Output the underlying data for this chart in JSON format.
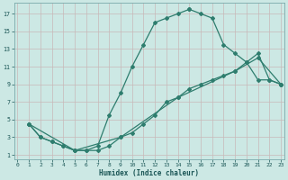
{
  "xlabel": "Humidex (Indice chaleur)",
  "bg_color": "#cce8e4",
  "line_color": "#2e7d6e",
  "grid_color": "#c8b8b8",
  "xlim": [
    -0.3,
    23.3
  ],
  "ylim": [
    0.5,
    18.2
  ],
  "xticks": [
    0,
    1,
    2,
    3,
    4,
    5,
    6,
    7,
    8,
    9,
    10,
    11,
    12,
    13,
    14,
    15,
    16,
    17,
    18,
    19,
    20,
    21,
    22,
    23
  ],
  "yticks": [
    1,
    3,
    5,
    7,
    9,
    11,
    13,
    15,
    17
  ],
  "line1_x": [
    1,
    2,
    3,
    4,
    5,
    6,
    7,
    8,
    9,
    10,
    11,
    12,
    13,
    14,
    15,
    15,
    16,
    17,
    18,
    19,
    20,
    21,
    22,
    23
  ],
  "line1_y": [
    4.5,
    3.0,
    2.5,
    2.0,
    1.5,
    1.5,
    2.0,
    5.5,
    8.0,
    11.0,
    13.5,
    16.0,
    16.5,
    17.0,
    17.5,
    17.5,
    17.0,
    16.5,
    13.5,
    12.5,
    11.5,
    9.5,
    9.5,
    9.0
  ],
  "line2_x": [
    1,
    2,
    3,
    4,
    5,
    6,
    7,
    8,
    9,
    10,
    11,
    12,
    13,
    14,
    15,
    16,
    17,
    18,
    19,
    20,
    21,
    22,
    23
  ],
  "line2_y": [
    4.5,
    3.0,
    2.5,
    2.0,
    1.5,
    1.5,
    1.5,
    2.0,
    3.0,
    3.5,
    4.5,
    5.5,
    7.0,
    7.5,
    8.5,
    9.0,
    9.5,
    10.0,
    10.5,
    11.5,
    12.5,
    9.5,
    9.0
  ],
  "line3_x": [
    1,
    5,
    9,
    14,
    19,
    21,
    23
  ],
  "line3_y": [
    4.5,
    1.5,
    3.0,
    7.5,
    10.5,
    12.0,
    9.0
  ]
}
